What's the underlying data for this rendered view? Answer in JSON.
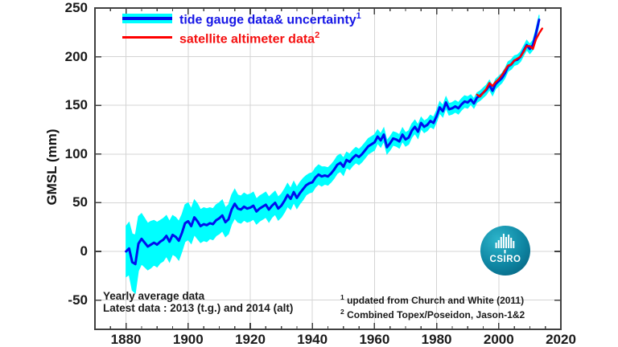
{
  "chart_data": {
    "type": "line",
    "title": "",
    "xlabel": "",
    "ylabel": "GMSL (mm)",
    "x_range": [
      1870,
      2020
    ],
    "y_range": [
      -80,
      250
    ],
    "x_ticks": [
      1880,
      1900,
      1920,
      1940,
      1960,
      1980,
      2000,
      2020
    ],
    "x_minor_tick_step": 5,
    "y_ticks": [
      -50,
      0,
      50,
      100,
      150,
      200,
      250
    ],
    "grid": true,
    "legend_position": "top-left",
    "colors": {
      "tide_gauge_line": "#0010EE",
      "uncertainty_band": "#00FFFF",
      "satellite_line": "#FF0000",
      "legend_text_blue": "#1515E6",
      "legend_text_red": "#F50F0F",
      "grid_line": "#d4d4d4",
      "frame": "#404040",
      "text": "#1a1a1a",
      "logo_teal": "#0e85a2"
    },
    "legend": [
      {
        "label": "tide gauge data& uncertainty",
        "sup": "1"
      },
      {
        "label": "satellite altimeter data",
        "sup": "2"
      }
    ],
    "series": [
      {
        "name": "tide gauge data& uncertainty",
        "style": "line_with_band",
        "start_year": 1880,
        "values": [
          0,
          3,
          -11,
          -13,
          8,
          13,
          9,
          5,
          7,
          9,
          7,
          10,
          12,
          16,
          10,
          17,
          15,
          11,
          19,
          29,
          31,
          26,
          35,
          31,
          26,
          28,
          27,
          29,
          28,
          32,
          34,
          37,
          30,
          33,
          43,
          49,
          44,
          43,
          46,
          44,
          45,
          47,
          41,
          44,
          46,
          48,
          43,
          47,
          50,
          44,
          47,
          52,
          58,
          54,
          61,
          55,
          60,
          64,
          68,
          70,
          71,
          76,
          79,
          77,
          78,
          77,
          80,
          84,
          89,
          91,
          87,
          94,
          92,
          96,
          99,
          97,
          100,
          104,
          108,
          110,
          112,
          118,
          114,
          120,
          107,
          111,
          116,
          115,
          113,
          120,
          115,
          117,
          124,
          128,
          123,
          132,
          128,
          130,
          134,
          132,
          139,
          148,
          144,
          153,
          146,
          147,
          149,
          147,
          151,
          154,
          153,
          156,
          152,
          158,
          160,
          163,
          166,
          171,
          165,
          172,
          175,
          178,
          183,
          190,
          192,
          196,
          197,
          200,
          206,
          212,
          208,
          212,
          224,
          238
        ],
        "uncertainty": [
          26,
          27,
          29,
          30,
          28,
          26,
          25,
          24,
          24,
          23,
          23,
          22,
          22,
          21,
          21,
          20,
          20,
          20,
          19,
          19,
          19,
          18,
          18,
          18,
          17,
          17,
          17,
          16,
          16,
          16,
          16,
          16,
          15,
          15,
          15,
          15,
          14,
          14,
          14,
          14,
          14,
          14,
          13,
          13,
          13,
          13,
          13,
          12,
          12,
          12,
          12,
          12,
          12,
          11,
          11,
          11,
          11,
          11,
          10,
          10,
          10,
          10,
          10,
          10,
          9,
          9,
          9,
          9,
          9,
          9,
          9,
          8,
          8,
          8,
          8,
          8,
          8,
          8,
          8,
          8,
          8,
          7,
          7,
          7,
          7,
          7,
          7,
          7,
          7,
          7,
          7,
          7,
          7,
          7,
          7,
          6,
          6,
          6,
          6,
          6,
          6,
          6,
          6,
          6,
          6,
          6,
          6,
          6,
          6,
          6,
          6,
          5,
          5,
          5,
          5,
          5,
          5,
          5,
          5,
          5,
          5,
          5,
          5,
          5,
          5,
          5,
          5,
          5,
          5,
          5,
          5,
          5,
          5,
          5
        ]
      },
      {
        "name": "satellite altimeter data",
        "style": "line",
        "start_year": 1993,
        "values": [
          161,
          159,
          163,
          167,
          173,
          170,
          174,
          177,
          181,
          186,
          191,
          192,
          196,
          198,
          200,
          205,
          211,
          211,
          208,
          218,
          224,
          229
        ]
      }
    ],
    "annotations": {
      "notes": [
        "Yearly average data",
        "Latest data : 2013 (t.g.) and 2014 (alt)"
      ],
      "footnotes": [
        {
          "sup": "1",
          "text": "updated from Church and White (2011)"
        },
        {
          "sup": "2",
          "text": "Combined Topex/Poseidon, Jason-1&2"
        }
      ]
    },
    "logo": {
      "text": "CSIRO"
    }
  }
}
